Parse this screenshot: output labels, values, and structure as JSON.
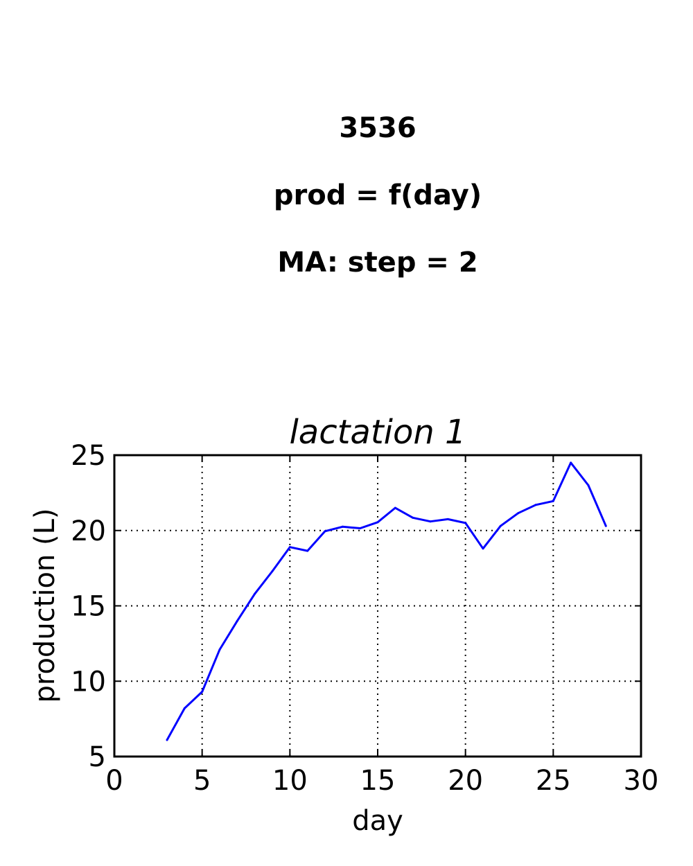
{
  "figure": {
    "title_lines": [
      "3536",
      "prod = f(day)",
      "MA: step = 2"
    ]
  },
  "chart_data": {
    "type": "line",
    "title": "lactation 1",
    "xlabel": "day",
    "ylabel": "production (L)",
    "xlim": [
      0,
      30
    ],
    "ylim": [
      5,
      25
    ],
    "xticks": [
      "0",
      "5",
      "10",
      "15",
      "20",
      "25",
      "30"
    ],
    "yticks": [
      "5",
      "10",
      "15",
      "20",
      "25"
    ],
    "grid": true,
    "colors": {
      "series": "#0000ff",
      "grid": "#000000",
      "axes": "#000000"
    },
    "series": [
      {
        "x": [
          3,
          4,
          5,
          6,
          7,
          8,
          9,
          10,
          11,
          12,
          13,
          14,
          15,
          16,
          17,
          18,
          19,
          20,
          21,
          22,
          23,
          24,
          25,
          26,
          27,
          28
        ],
        "values": [
          6.1,
          8.2,
          9.3,
          12.1,
          14.0,
          15.8,
          17.3,
          18.9,
          18.65,
          19.95,
          20.25,
          20.15,
          20.55,
          21.5,
          20.85,
          20.6,
          20.75,
          20.5,
          18.8,
          20.3,
          21.15,
          21.7,
          21.95,
          24.5,
          23.0,
          20.3
        ]
      }
    ]
  }
}
